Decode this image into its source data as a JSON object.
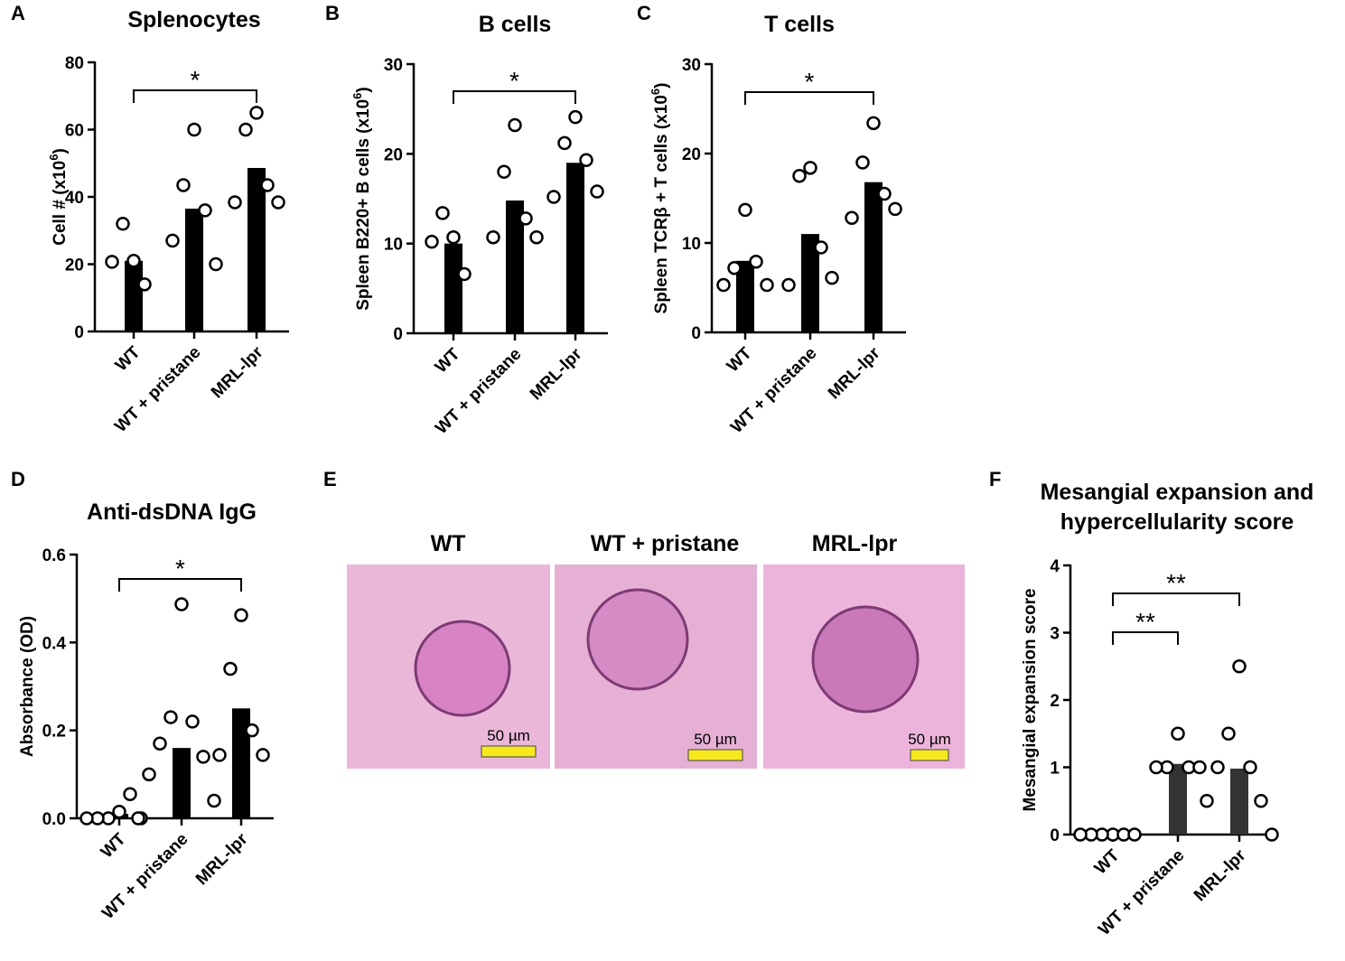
{
  "chart_data": [
    {
      "type": "bar",
      "panel": "A",
      "title": "Splenocytes",
      "ylabel": [
        "Cell # (x10",
        "6",
        ")"
      ],
      "categories": [
        "WT",
        "WT + pristane",
        "MRL-lpr"
      ],
      "values": [
        21,
        36.5,
        48.6
      ],
      "color": "#000000",
      "points": [
        [
          21,
          32,
          14,
          20.7
        ],
        [
          60,
          43.5,
          36,
          27,
          20
        ],
        [
          65,
          60,
          43.5,
          38.4,
          38.4
        ]
      ],
      "ylim": [
        0,
        80
      ],
      "yticks": [
        0,
        20,
        40,
        60,
        80
      ],
      "significance": [
        {
          "label": "*"
        }
      ]
    },
    {
      "type": "bar",
      "panel": "B",
      "title": "B cells",
      "ylabel": [
        "Spleen B220+ B cells (x10",
        "6",
        ")"
      ],
      "categories": [
        "WT",
        "WT + pristane",
        "MRL-lpr"
      ],
      "values": [
        10,
        14.8,
        19
      ],
      "color": "#000000",
      "points": [
        [
          10.7,
          13.4,
          6.6,
          10.2
        ],
        [
          23.2,
          18,
          12.8,
          10.7,
          10.7
        ],
        [
          24.1,
          21.2,
          19.3,
          15.2,
          15.8
        ]
      ],
      "ylim": [
        0,
        30
      ],
      "yticks": [
        0,
        10,
        20,
        30
      ],
      "significance": [
        {
          "label": "*"
        }
      ]
    },
    {
      "type": "bar",
      "panel": "C",
      "title": "T cells",
      "ylabel": [
        "Spleen TCRβ + T cells (x10",
        "6",
        ")"
      ],
      "categories": [
        "WT",
        "WT + pristane",
        "MRL-lpr"
      ],
      "values": [
        8,
        11,
        16.8
      ],
      "color": "#000000",
      "points": [
        [
          13.7,
          7.2,
          7.9,
          5.3,
          5.3
        ],
        [
          18.4,
          17.5,
          9.5,
          5.3,
          6.1
        ],
        [
          23.4,
          19,
          15.5,
          12.8,
          13.8
        ]
      ],
      "ylim": [
        0,
        30
      ],
      "yticks": [
        0,
        10,
        20,
        30
      ],
      "significance": [
        {
          "label": "*"
        }
      ]
    },
    {
      "type": "bar",
      "panel": "D",
      "title": "Anti-dsDNA IgG",
      "ylabel": [
        "Absorbance (OD)"
      ],
      "categories": [
        "WT",
        "WT + pristane",
        "MRL-lpr"
      ],
      "values": [
        0.01,
        0.16,
        0.25
      ],
      "color": "#000000",
      "points": [
        [
          0.015,
          0,
          0.055,
          0,
          0,
          0
        ],
        [
          0.487,
          0.23,
          0.22,
          0.17,
          0.14,
          0.1,
          0.04,
          0
        ],
        [
          0.462,
          0.34,
          0.2,
          0.144,
          0.144
        ]
      ],
      "ylim": [
        0,
        0.6
      ],
      "yticks": [
        {
          "value": 0,
          "label": "0.0"
        },
        0.2,
        0.4,
        0.6
      ],
      "significance": [
        {
          "label": "*"
        }
      ]
    },
    {
      "type": "bar",
      "panel": "F",
      "title": [
        "Mesangial expansion and",
        "hypercellularity score"
      ],
      "ylabel": [
        "Mesangial expansion score"
      ],
      "categories": [
        "WT",
        "WT + pristane",
        "MRL-lpr"
      ],
      "values": [
        0,
        1.05,
        0.98
      ],
      "color": "#333333",
      "points": [
        [
          0,
          0,
          0,
          0,
          0,
          0
        ],
        [
          1.5,
          1,
          1,
          1,
          1
        ],
        [
          2.5,
          1.5,
          1,
          1,
          0.5,
          0.5,
          0
        ]
      ],
      "ylim": [
        0,
        4
      ],
      "yticks": [
        0,
        1,
        2,
        3,
        4
      ],
      "significance": [
        {
          "label": "**"
        },
        {
          "label": "**"
        }
      ]
    }
  ],
  "micrographs": {
    "panel": "E",
    "images": [
      {
        "label": "WT",
        "scale_bar": "50 µm"
      },
      {
        "label": "WT + pristane",
        "scale_bar": "50 µm"
      },
      {
        "label": "MRL-lpr",
        "scale_bar": "50 µm"
      }
    ]
  }
}
